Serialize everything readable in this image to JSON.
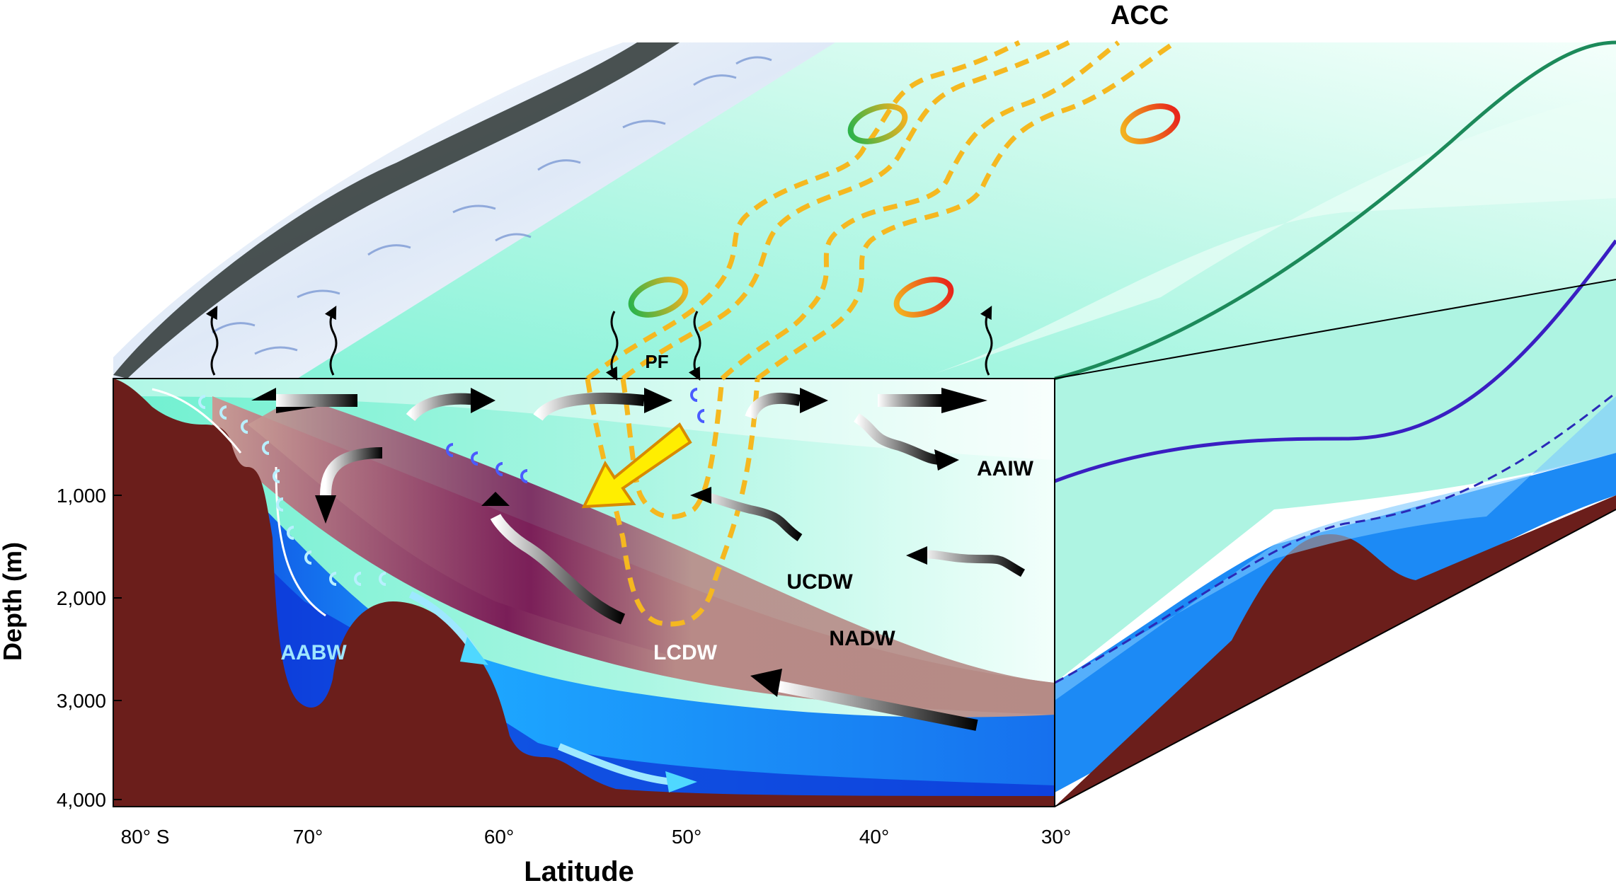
{
  "top_label": "ACC",
  "front_label": "PF",
  "water_masses": {
    "aaiw": "AAIW",
    "ucdw": "UCDW",
    "nadw": "NADW",
    "lcdw": "LCDW",
    "aabw": "AABW"
  },
  "depth_axis": {
    "title": "Depth (m)",
    "ticks": [
      "1,000",
      "2,000",
      "3,000",
      "4,000"
    ]
  },
  "latitude_axis": {
    "title": "Latitude",
    "ticks": [
      "80° S",
      "70°",
      "60°",
      "50°",
      "40°",
      "30°"
    ]
  },
  "colors": {
    "seafloor": "#6b1e1b",
    "surface_water": "#8ff0d6",
    "deep_water": "#b08a85",
    "bottom_water": "#1a6cf0",
    "front_dashes": "#f5b820",
    "upwelling_arrow": "#ffee00"
  }
}
